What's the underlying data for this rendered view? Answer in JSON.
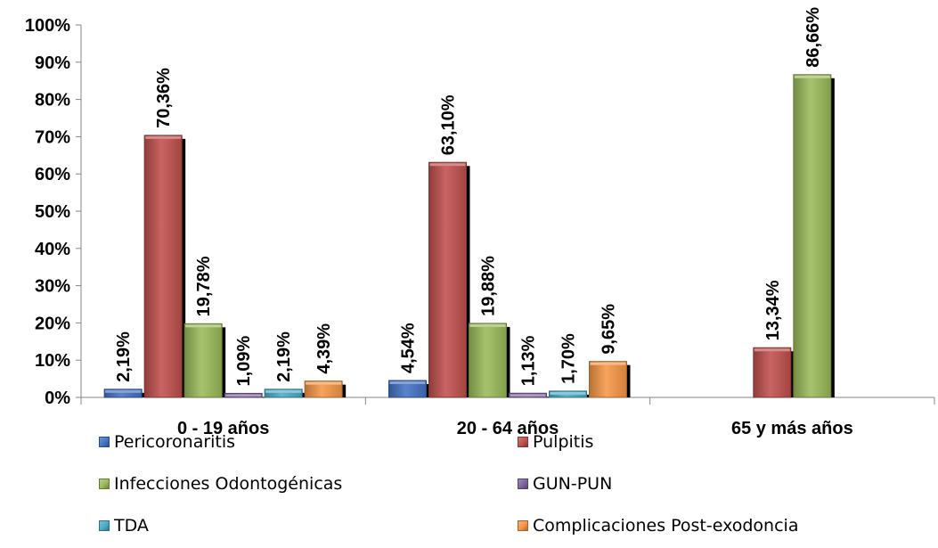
{
  "chart_data": {
    "type": "bar",
    "categories": [
      "0 - 19 años",
      "20 - 64 años",
      "65 y más años"
    ],
    "series": [
      {
        "name": "Pericoronaritis",
        "color": "#4472C4",
        "values": [
          2.19,
          4.54,
          null
        ],
        "labels": [
          "2,19%",
          "4,54%",
          ""
        ]
      },
      {
        "name": "Pulpitis",
        "color": "#C0504D",
        "values": [
          70.36,
          63.1,
          13.34
        ],
        "labels": [
          "70,36%",
          "63,10%",
          "13,34%"
        ]
      },
      {
        "name": "Infecciones Odontogénicas",
        "color": "#9BBB59",
        "values": [
          19.78,
          19.88,
          86.66
        ],
        "labels": [
          "19,78%",
          "19,88%",
          "86,66%"
        ]
      },
      {
        "name": "GUN-PUN",
        "color": "#8064A2",
        "values": [
          1.09,
          1.13,
          null
        ],
        "labels": [
          "1,09%",
          "1,13%",
          ""
        ]
      },
      {
        "name": "TDA",
        "color": "#4BACC6",
        "values": [
          2.19,
          1.7,
          null
        ],
        "labels": [
          "2,19%",
          "1,70%",
          ""
        ]
      },
      {
        "name": "Complicaciones Post-exodoncia",
        "color": "#F79646",
        "values": [
          4.39,
          9.65,
          null
        ],
        "labels": [
          "4,39%",
          "9,65%",
          ""
        ]
      }
    ],
    "yticks": [
      "0%",
      "10%",
      "20%",
      "30%",
      "40%",
      "50%",
      "60%",
      "70%",
      "80%",
      "90%",
      "100%"
    ],
    "ylim": [
      0,
      100
    ],
    "title": "",
    "xlabel": "",
    "ylabel": "",
    "grid": false,
    "legend_position": "bottom"
  }
}
